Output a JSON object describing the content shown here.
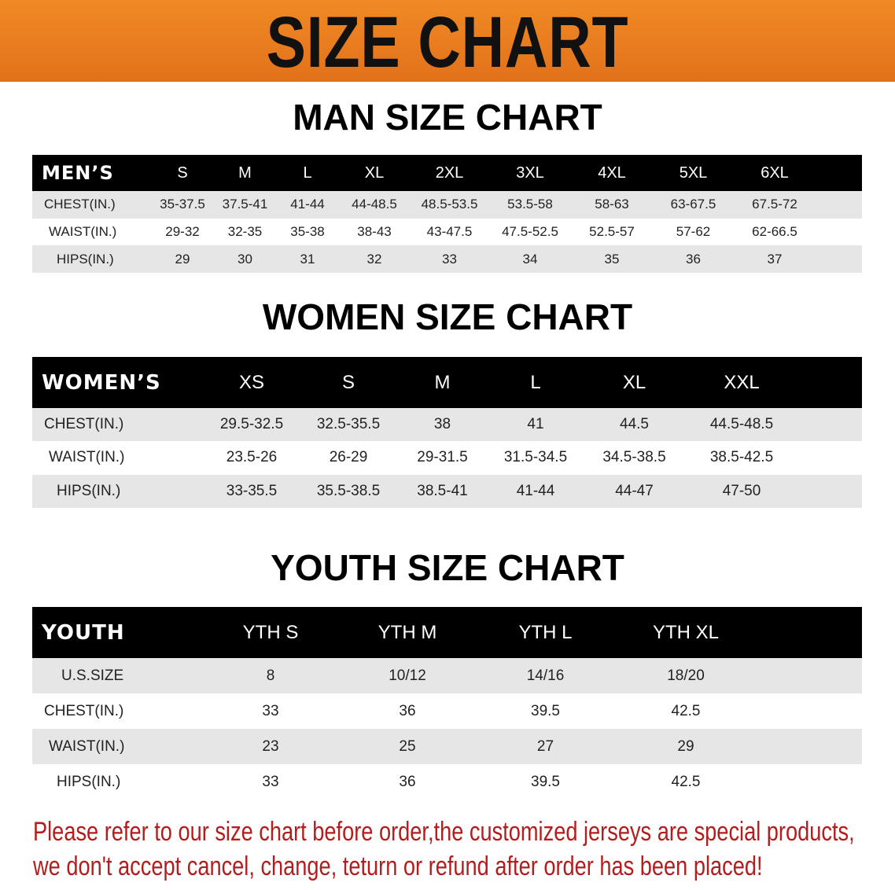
{
  "banner": {
    "title": "SIZE CHART",
    "color": "#e97d1f"
  },
  "men": {
    "title": "MAN SIZE CHART",
    "header": [
      "MEN’S",
      "S",
      "M",
      "L",
      "XL",
      "2XL",
      "3XL",
      "4XL",
      "5XL",
      "6XL"
    ],
    "rows": [
      {
        "label": "CHEST(IN.)",
        "values": [
          "35-37.5",
          "37.5-41",
          "41-44",
          "44-48.5",
          "48.5-53.5",
          "53.5-58",
          "58-63",
          "63-67.5",
          "67.5-72"
        ]
      },
      {
        "label": "WAIST(IN.)",
        "values": [
          "29-32",
          "32-35",
          "35-38",
          "38-43",
          "43-47.5",
          "47.5-52.5",
          "52.5-57",
          "57-62",
          "62-66.5"
        ]
      },
      {
        "label": "HIPS(IN.)",
        "values": [
          "29",
          "30",
          "31",
          "32",
          "33",
          "34",
          "35",
          "36",
          "37"
        ]
      }
    ]
  },
  "women": {
    "title": "WOMEN SIZE CHART",
    "header": [
      "WOMEN’S",
      "XS",
      "S",
      "M",
      "L",
      "XL",
      "XXL"
    ],
    "rows": [
      {
        "label": "CHEST(IN.)",
        "values": [
          "29.5-32.5",
          "32.5-35.5",
          "38",
          "41",
          "44.5",
          "44.5-48.5"
        ]
      },
      {
        "label": "WAIST(IN.)",
        "values": [
          "23.5-26",
          "26-29",
          "29-31.5",
          "31.5-34.5",
          "34.5-38.5",
          "38.5-42.5"
        ]
      },
      {
        "label": "HIPS(IN.)",
        "values": [
          "33-35.5",
          "35.5-38.5",
          "38.5-41",
          "41-44",
          "44-47",
          "47-50"
        ]
      }
    ]
  },
  "youth": {
    "title": "YOUTH SIZE CHART",
    "header": [
      "YOUTH",
      "YTH S",
      "YTH M",
      "YTH L",
      "YTH XL"
    ],
    "rows": [
      {
        "label": "U.S.SIZE",
        "values": [
          "8",
          "10/12",
          "14/16",
          "18/20"
        ]
      },
      {
        "label": "CHEST(IN.)",
        "values": [
          "33",
          "36",
          "39.5",
          "42.5"
        ]
      },
      {
        "label": "WAIST(IN.)",
        "values": [
          "23",
          "25",
          "27",
          "29"
        ]
      },
      {
        "label": "HIPS(IN.)",
        "values": [
          "33",
          "36",
          "39.5",
          "42.5"
        ]
      }
    ]
  },
  "notice": {
    "line1": "Please refer to our size chart before order,the customized jerseys are special products,",
    "line2": "we don't accept cancel, change, teturn or refund after order has been placed!",
    "color": "#b31d1d"
  }
}
